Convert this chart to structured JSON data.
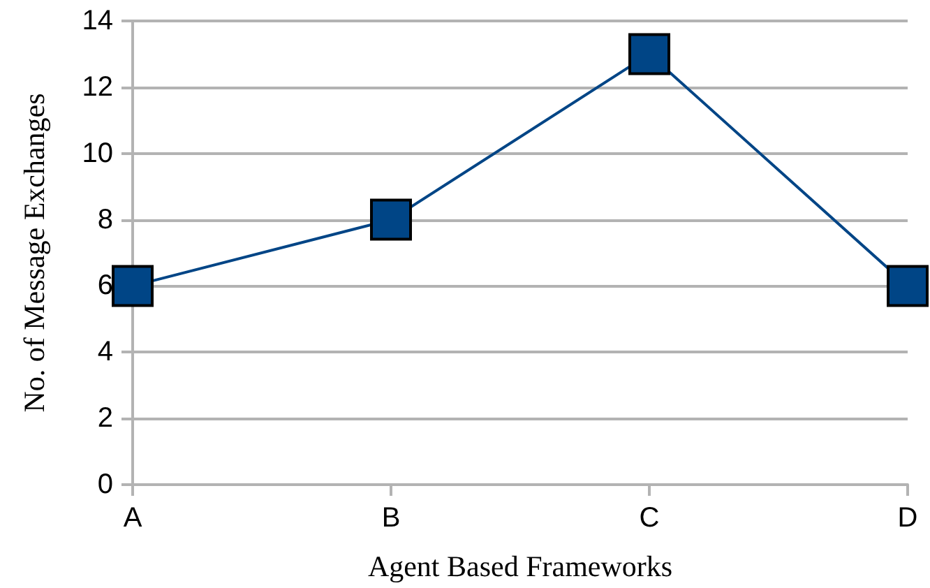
{
  "chart_data": {
    "type": "line",
    "xlabel": "Agent Based Frameworks",
    "ylabel": "No. of Message Exchanges",
    "categories": [
      "A",
      "B",
      "C",
      "D"
    ],
    "series": [
      {
        "color": "#004586",
        "values": [
          6,
          8,
          13,
          6
        ]
      }
    ],
    "ylim": [
      0,
      14
    ],
    "yticks": [
      0,
      2,
      4,
      6,
      8,
      10,
      12,
      14
    ],
    "grid": "y",
    "marker": "square",
    "line_style": "solid"
  }
}
